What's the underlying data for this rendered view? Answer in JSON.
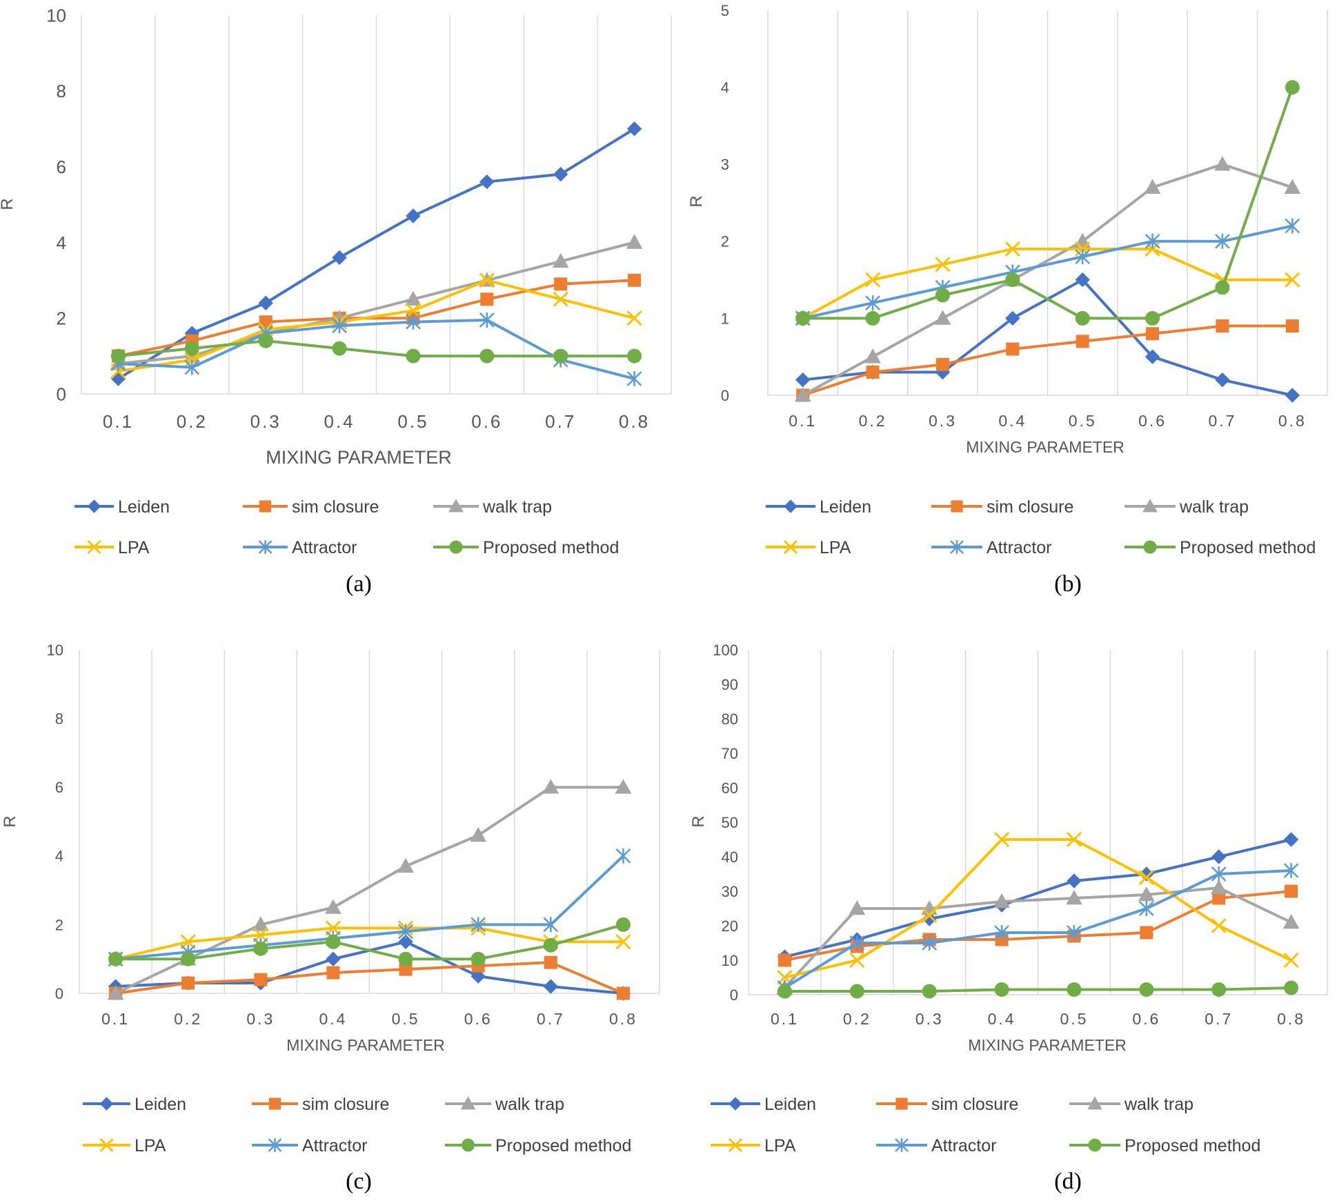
{
  "figure": {
    "series_styles": [
      {
        "name": "Leiden",
        "color": "#4472C4",
        "marker": "diamond"
      },
      {
        "name": "sim closure",
        "color": "#ED7D31",
        "marker": "square"
      },
      {
        "name": "walk trap",
        "color": "#A5A5A5",
        "marker": "triangle"
      },
      {
        "name": "LPA",
        "color": "#FFC000",
        "marker": "x"
      },
      {
        "name": "Attractor",
        "color": "#5B9BD5",
        "marker": "asterisk"
      },
      {
        "name": "Proposed method",
        "color": "#70AD47",
        "marker": "circle"
      }
    ]
  },
  "chart_data": [
    {
      "panel": "a",
      "caption": "(a)",
      "type": "line",
      "categories": [
        "0.1",
        "0.2",
        "0.3",
        "0.4",
        "0.5",
        "0.6",
        "0.7",
        "0.8"
      ],
      "xlabel": "MIXING PARAMETER",
      "ylabel": "R",
      "ylim": [
        0,
        10
      ],
      "yticks": [
        0,
        2,
        4,
        6,
        8,
        10
      ],
      "grid": "vertical",
      "legend": "bottom",
      "series": [
        {
          "name": "Leiden",
          "values": [
            0.4,
            1.6,
            2.4,
            3.6,
            4.7,
            5.6,
            5.8,
            7.0
          ]
        },
        {
          "name": "sim closure",
          "values": [
            1.0,
            1.4,
            1.9,
            2.0,
            2.0,
            2.5,
            2.9,
            3.0
          ]
        },
        {
          "name": "walk trap",
          "values": [
            0.8,
            1.0,
            1.6,
            2.0,
            2.5,
            3.0,
            3.5,
            4.0
          ]
        },
        {
          "name": "LPA",
          "values": [
            0.6,
            0.9,
            1.7,
            1.9,
            2.2,
            3.0,
            2.5,
            2.0
          ]
        },
        {
          "name": "Attractor",
          "values": [
            0.8,
            0.7,
            1.6,
            1.8,
            1.9,
            1.95,
            0.9,
            0.4
          ]
        },
        {
          "name": "Proposed method",
          "values": [
            1.0,
            1.2,
            1.4,
            1.2,
            1.0,
            1.0,
            1.0,
            1.0
          ]
        }
      ]
    },
    {
      "panel": "b",
      "caption": "(b)",
      "type": "line",
      "categories": [
        "0.1",
        "0.2",
        "0.3",
        "0.4",
        "0.5",
        "0.6",
        "0.7",
        "0.8"
      ],
      "xlabel": "MIXING PARAMETER",
      "ylabel": "R",
      "ylim": [
        0,
        5
      ],
      "yticks": [
        0,
        1,
        2,
        3,
        4,
        5
      ],
      "grid": "vertical",
      "legend": "bottom",
      "series": [
        {
          "name": "Leiden",
          "values": [
            0.2,
            0.3,
            0.3,
            1.0,
            1.5,
            0.5,
            0.2,
            0.0
          ]
        },
        {
          "name": "sim closure",
          "values": [
            0.0,
            0.3,
            0.4,
            0.6,
            0.7,
            0.8,
            0.9,
            0.9
          ]
        },
        {
          "name": "walk trap",
          "values": [
            0.0,
            0.5,
            1.0,
            1.5,
            2.0,
            2.7,
            3.0,
            2.7
          ]
        },
        {
          "name": "LPA",
          "values": [
            1.0,
            1.5,
            1.7,
            1.9,
            1.9,
            1.9,
            1.5,
            1.5
          ]
        },
        {
          "name": "Attractor",
          "values": [
            1.0,
            1.2,
            1.4,
            1.6,
            1.8,
            2.0,
            2.0,
            2.2
          ]
        },
        {
          "name": "Proposed method",
          "values": [
            1.0,
            1.0,
            1.3,
            1.5,
            1.0,
            1.0,
            1.4,
            4.0
          ]
        }
      ]
    },
    {
      "panel": "c",
      "caption": "(c)",
      "type": "line",
      "categories": [
        "0.1",
        "0.2",
        "0.3",
        "0.4",
        "0.5",
        "0.6",
        "0.7",
        "0.8"
      ],
      "xlabel": "MIXING PARAMETER",
      "ylabel": "R",
      "ylim": [
        0,
        10
      ],
      "yticks": [
        0,
        2,
        4,
        6,
        8,
        10
      ],
      "grid": "vertical",
      "legend": "bottom",
      "series": [
        {
          "name": "Leiden",
          "values": [
            0.2,
            0.3,
            0.3,
            1.0,
            1.5,
            0.5,
            0.2,
            0.0
          ]
        },
        {
          "name": "sim closure",
          "values": [
            0.0,
            0.3,
            0.4,
            0.6,
            0.7,
            0.8,
            0.9,
            0.0
          ]
        },
        {
          "name": "walk trap",
          "values": [
            0.0,
            1.0,
            2.0,
            2.5,
            3.7,
            4.6,
            6.0,
            6.0
          ]
        },
        {
          "name": "LPA",
          "values": [
            1.0,
            1.5,
            1.7,
            1.9,
            1.9,
            1.9,
            1.5,
            1.5
          ]
        },
        {
          "name": "Attractor",
          "values": [
            1.0,
            1.2,
            1.4,
            1.6,
            1.8,
            2.0,
            2.0,
            4.0
          ]
        },
        {
          "name": "Proposed method",
          "values": [
            1.0,
            1.0,
            1.3,
            1.5,
            1.0,
            1.0,
            1.4,
            2.0
          ]
        }
      ]
    },
    {
      "panel": "d",
      "caption": "(d)",
      "type": "line",
      "categories": [
        "0.1",
        "0.2",
        "0.3",
        "0.4",
        "0.5",
        "0.6",
        "0.7",
        "0.8"
      ],
      "xlabel": "MIXING PARAMETER",
      "ylabel": "R",
      "ylim": [
        0,
        100
      ],
      "yticks": [
        0,
        10,
        20,
        30,
        40,
        50,
        60,
        70,
        80,
        90,
        100
      ],
      "grid": "vertical",
      "legend": "bottom",
      "series": [
        {
          "name": "Leiden",
          "values": [
            11,
            16,
            22,
            26,
            33,
            35,
            40,
            45
          ]
        },
        {
          "name": "sim closure",
          "values": [
            10,
            14,
            16,
            16,
            17,
            18,
            28,
            30
          ]
        },
        {
          "name": "walk trap",
          "values": [
            2,
            25,
            25,
            27,
            28,
            29,
            31,
            21
          ]
        },
        {
          "name": "LPA",
          "values": [
            5,
            10,
            23,
            45,
            45,
            34,
            20,
            10
          ]
        },
        {
          "name": "Attractor",
          "values": [
            2,
            15,
            15,
            18,
            18,
            25,
            35,
            36
          ]
        },
        {
          "name": "Proposed method",
          "values": [
            1,
            1,
            1,
            1.5,
            1.5,
            1.5,
            1.5,
            2
          ]
        }
      ]
    }
  ]
}
